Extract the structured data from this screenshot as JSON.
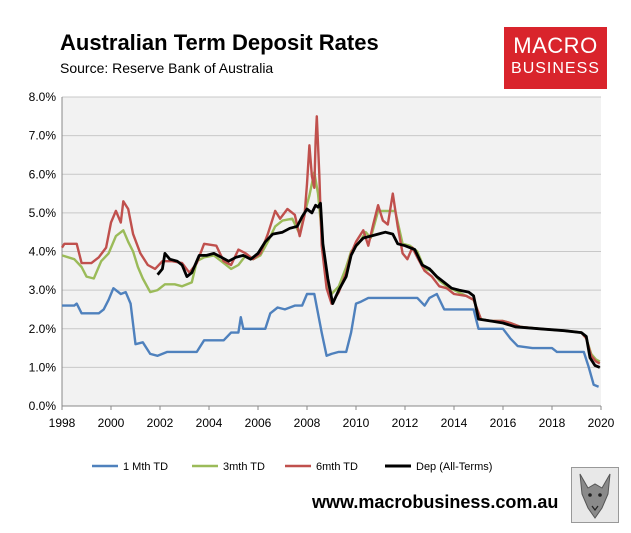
{
  "header": {
    "title": "Australian Term Deposit Rates",
    "subtitle": "Source: Reserve Bank of Australia"
  },
  "logo": {
    "line1": "MACRO",
    "line2": "BUSINESS",
    "color": "#d9242c"
  },
  "footer": {
    "url": "www.macrobusiness.com.au"
  },
  "chart_data": {
    "type": "line",
    "title": "Australian Term Deposit Rates",
    "xlim": [
      1998,
      2020
    ],
    "ylim": [
      0,
      0.08
    ],
    "x_ticks": [
      "1998",
      "2000",
      "2002",
      "2004",
      "2006",
      "2008",
      "2010",
      "2012",
      "2014",
      "2016",
      "2018",
      "2020"
    ],
    "y_ticks": [
      "0.0%",
      "1.0%",
      "2.0%",
      "3.0%",
      "4.0%",
      "5.0%",
      "6.0%",
      "7.0%",
      "8.0%"
    ],
    "plot_background": "#f2f2f2",
    "grid": true,
    "legend_position": "bottom",
    "series": [
      {
        "name": "1 Mth TD",
        "color": "#4f81bd",
        "points": [
          [
            1998.0,
            0.026
          ],
          [
            1998.5,
            0.026
          ],
          [
            1998.6,
            0.0265
          ],
          [
            1998.8,
            0.024
          ],
          [
            1999.5,
            0.024
          ],
          [
            1999.7,
            0.025
          ],
          [
            1999.9,
            0.0275
          ],
          [
            2000.1,
            0.0305
          ],
          [
            2000.4,
            0.029
          ],
          [
            2000.6,
            0.0295
          ],
          [
            2000.8,
            0.0265
          ],
          [
            2001.0,
            0.016
          ],
          [
            2001.3,
            0.0165
          ],
          [
            2001.6,
            0.0135
          ],
          [
            2001.9,
            0.013
          ],
          [
            2002.3,
            0.014
          ],
          [
            2003.5,
            0.014
          ],
          [
            2003.8,
            0.017
          ],
          [
            2004.6,
            0.017
          ],
          [
            2004.9,
            0.019
          ],
          [
            2005.2,
            0.019
          ],
          [
            2005.3,
            0.023
          ],
          [
            2005.4,
            0.02
          ],
          [
            2006.3,
            0.02
          ],
          [
            2006.5,
            0.024
          ],
          [
            2006.8,
            0.0255
          ],
          [
            2007.1,
            0.025
          ],
          [
            2007.5,
            0.026
          ],
          [
            2007.8,
            0.026
          ],
          [
            2008.0,
            0.029
          ],
          [
            2008.3,
            0.029
          ],
          [
            2008.6,
            0.019
          ],
          [
            2008.8,
            0.013
          ],
          [
            2009.0,
            0.0135
          ],
          [
            2009.3,
            0.014
          ],
          [
            2009.6,
            0.014
          ],
          [
            2009.8,
            0.019
          ],
          [
            2010.0,
            0.0265
          ],
          [
            2010.2,
            0.027
          ],
          [
            2010.5,
            0.028
          ],
          [
            2012.5,
            0.028
          ],
          [
            2012.8,
            0.026
          ],
          [
            2013.0,
            0.028
          ],
          [
            2013.3,
            0.029
          ],
          [
            2013.6,
            0.025
          ],
          [
            2014.8,
            0.025
          ],
          [
            2015.0,
            0.02
          ],
          [
            2016.0,
            0.02
          ],
          [
            2016.3,
            0.0175
          ],
          [
            2016.6,
            0.0155
          ],
          [
            2017.2,
            0.015
          ],
          [
            2018.0,
            0.015
          ],
          [
            2018.2,
            0.014
          ],
          [
            2019.3,
            0.014
          ],
          [
            2019.5,
            0.01
          ],
          [
            2019.7,
            0.0055
          ],
          [
            2019.9,
            0.005
          ]
        ]
      },
      {
        "name": "3mth TD",
        "color": "#9bbb59",
        "points": [
          [
            1998.0,
            0.039
          ],
          [
            1998.5,
            0.038
          ],
          [
            1998.8,
            0.036
          ],
          [
            1999.0,
            0.0335
          ],
          [
            1999.3,
            0.033
          ],
          [
            1999.6,
            0.0375
          ],
          [
            1999.9,
            0.0395
          ],
          [
            2000.2,
            0.044
          ],
          [
            2000.5,
            0.0455
          ],
          [
            2000.7,
            0.0425
          ],
          [
            2000.9,
            0.04
          ],
          [
            2001.1,
            0.036
          ],
          [
            2001.3,
            0.033
          ],
          [
            2001.6,
            0.0295
          ],
          [
            2001.9,
            0.03
          ],
          [
            2002.2,
            0.0315
          ],
          [
            2002.6,
            0.0315
          ],
          [
            2002.9,
            0.031
          ],
          [
            2003.3,
            0.032
          ],
          [
            2003.5,
            0.0375
          ],
          [
            2003.8,
            0.0385
          ],
          [
            2004.2,
            0.039
          ],
          [
            2004.6,
            0.037
          ],
          [
            2004.9,
            0.0355
          ],
          [
            2005.2,
            0.0365
          ],
          [
            2005.5,
            0.039
          ],
          [
            2005.8,
            0.038
          ],
          [
            2006.1,
            0.039
          ],
          [
            2006.4,
            0.0425
          ],
          [
            2006.7,
            0.0465
          ],
          [
            2007.0,
            0.048
          ],
          [
            2007.4,
            0.0485
          ],
          [
            2007.7,
            0.0445
          ],
          [
            2007.9,
            0.05
          ],
          [
            2008.1,
            0.0545
          ],
          [
            2008.3,
            0.0605
          ],
          [
            2008.45,
            0.055
          ],
          [
            2008.6,
            0.045
          ],
          [
            2008.8,
            0.032
          ],
          [
            2009.0,
            0.029
          ],
          [
            2009.3,
            0.031
          ],
          [
            2009.6,
            0.036
          ],
          [
            2009.8,
            0.04
          ],
          [
            2010.1,
            0.042
          ],
          [
            2010.4,
            0.045
          ],
          [
            2010.6,
            0.0435
          ],
          [
            2010.9,
            0.0505
          ],
          [
            2011.6,
            0.0505
          ],
          [
            2011.9,
            0.042
          ],
          [
            2012.2,
            0.0415
          ],
          [
            2012.5,
            0.04
          ],
          [
            2012.8,
            0.0355
          ],
          [
            2013.1,
            0.035
          ],
          [
            2013.4,
            0.0325
          ],
          [
            2013.7,
            0.031
          ],
          [
            2014.0,
            0.03
          ],
          [
            2014.5,
            0.0285
          ],
          [
            2014.8,
            0.0275
          ],
          [
            2015.1,
            0.0225
          ],
          [
            2015.5,
            0.022
          ],
          [
            2016.0,
            0.022
          ],
          [
            2016.3,
            0.0215
          ],
          [
            2016.7,
            0.0205
          ],
          [
            2017.5,
            0.02
          ],
          [
            2018.5,
            0.0195
          ],
          [
            2019.2,
            0.019
          ],
          [
            2019.4,
            0.0175
          ],
          [
            2019.6,
            0.0135
          ],
          [
            2019.8,
            0.012
          ],
          [
            2019.95,
            0.0115
          ]
        ]
      },
      {
        "name": "6mth TD",
        "color": "#c0504d",
        "points": [
          [
            1998.0,
            0.041
          ],
          [
            1998.1,
            0.042
          ],
          [
            1998.6,
            0.042
          ],
          [
            1998.8,
            0.037
          ],
          [
            1999.2,
            0.037
          ],
          [
            1999.5,
            0.0385
          ],
          [
            1999.8,
            0.041
          ],
          [
            2000.0,
            0.0475
          ],
          [
            2000.2,
            0.0505
          ],
          [
            2000.4,
            0.0475
          ],
          [
            2000.5,
            0.053
          ],
          [
            2000.7,
            0.051
          ],
          [
            2000.9,
            0.0445
          ],
          [
            2001.2,
            0.0395
          ],
          [
            2001.5,
            0.0365
          ],
          [
            2001.8,
            0.0355
          ],
          [
            2002.1,
            0.0375
          ],
          [
            2002.5,
            0.0375
          ],
          [
            2002.9,
            0.037
          ],
          [
            2003.2,
            0.0345
          ],
          [
            2003.5,
            0.037
          ],
          [
            2003.8,
            0.042
          ],
          [
            2004.3,
            0.0415
          ],
          [
            2004.6,
            0.0375
          ],
          [
            2004.9,
            0.0365
          ],
          [
            2005.2,
            0.0405
          ],
          [
            2005.5,
            0.0395
          ],
          [
            2005.8,
            0.038
          ],
          [
            2006.1,
            0.0395
          ],
          [
            2006.4,
            0.0445
          ],
          [
            2006.7,
            0.0505
          ],
          [
            2006.9,
            0.0485
          ],
          [
            2007.2,
            0.051
          ],
          [
            2007.5,
            0.0495
          ],
          [
            2007.7,
            0.044
          ],
          [
            2007.9,
            0.0495
          ],
          [
            2008.0,
            0.0575
          ],
          [
            2008.1,
            0.0675
          ],
          [
            2008.2,
            0.0595
          ],
          [
            2008.3,
            0.0565
          ],
          [
            2008.35,
            0.0685
          ],
          [
            2008.4,
            0.075
          ],
          [
            2008.5,
            0.06
          ],
          [
            2008.6,
            0.0415
          ],
          [
            2008.8,
            0.0305
          ],
          [
            2009.0,
            0.0265
          ],
          [
            2009.3,
            0.0295
          ],
          [
            2009.6,
            0.0345
          ],
          [
            2009.8,
            0.0395
          ],
          [
            2010.0,
            0.0425
          ],
          [
            2010.3,
            0.0455
          ],
          [
            2010.5,
            0.0415
          ],
          [
            2010.7,
            0.047
          ],
          [
            2010.9,
            0.052
          ],
          [
            2011.1,
            0.048
          ],
          [
            2011.3,
            0.047
          ],
          [
            2011.5,
            0.055
          ],
          [
            2011.7,
            0.0465
          ],
          [
            2011.9,
            0.0395
          ],
          [
            2012.1,
            0.038
          ],
          [
            2012.3,
            0.041
          ],
          [
            2012.5,
            0.0385
          ],
          [
            2012.8,
            0.035
          ],
          [
            2013.1,
            0.0335
          ],
          [
            2013.4,
            0.031
          ],
          [
            2013.7,
            0.0305
          ],
          [
            2014.0,
            0.029
          ],
          [
            2014.5,
            0.0285
          ],
          [
            2014.8,
            0.0275
          ],
          [
            2015.1,
            0.0225
          ],
          [
            2015.5,
            0.022
          ],
          [
            2016.0,
            0.022
          ],
          [
            2016.3,
            0.0215
          ],
          [
            2016.7,
            0.0205
          ],
          [
            2017.5,
            0.02
          ],
          [
            2018.5,
            0.0195
          ],
          [
            2019.2,
            0.019
          ],
          [
            2019.4,
            0.0175
          ],
          [
            2019.6,
            0.013
          ],
          [
            2019.8,
            0.0115
          ],
          [
            2019.95,
            0.011
          ]
        ]
      },
      {
        "name": "Dep (All-Terms)",
        "color": "#000000",
        "points": [
          [
            2001.9,
            0.034
          ],
          [
            2002.1,
            0.0355
          ],
          [
            2002.2,
            0.0395
          ],
          [
            2002.4,
            0.038
          ],
          [
            2002.7,
            0.0375
          ],
          [
            2002.9,
            0.0365
          ],
          [
            2003.1,
            0.0335
          ],
          [
            2003.3,
            0.0345
          ],
          [
            2003.6,
            0.039
          ],
          [
            2003.9,
            0.039
          ],
          [
            2004.2,
            0.0395
          ],
          [
            2004.5,
            0.0385
          ],
          [
            2004.8,
            0.0375
          ],
          [
            2005.1,
            0.0385
          ],
          [
            2005.4,
            0.039
          ],
          [
            2005.7,
            0.038
          ],
          [
            2006.0,
            0.0395
          ],
          [
            2006.3,
            0.0425
          ],
          [
            2006.6,
            0.0445
          ],
          [
            2007.0,
            0.045
          ],
          [
            2007.3,
            0.046
          ],
          [
            2007.6,
            0.0465
          ],
          [
            2007.8,
            0.049
          ],
          [
            2008.0,
            0.051
          ],
          [
            2008.2,
            0.05
          ],
          [
            2008.35,
            0.052
          ],
          [
            2008.45,
            0.0515
          ],
          [
            2008.55,
            0.0525
          ],
          [
            2008.65,
            0.042
          ],
          [
            2008.85,
            0.033
          ],
          [
            2009.05,
            0.0265
          ],
          [
            2009.3,
            0.03
          ],
          [
            2009.6,
            0.0335
          ],
          [
            2009.8,
            0.039
          ],
          [
            2010.0,
            0.0415
          ],
          [
            2010.3,
            0.0435
          ],
          [
            2010.6,
            0.044
          ],
          [
            2010.9,
            0.0445
          ],
          [
            2011.2,
            0.045
          ],
          [
            2011.5,
            0.0445
          ],
          [
            2011.7,
            0.042
          ],
          [
            2012.0,
            0.0415
          ],
          [
            2012.4,
            0.0405
          ],
          [
            2012.7,
            0.0365
          ],
          [
            2013.0,
            0.0355
          ],
          [
            2013.3,
            0.0335
          ],
          [
            2013.6,
            0.032
          ],
          [
            2013.9,
            0.0305
          ],
          [
            2014.2,
            0.03
          ],
          [
            2014.6,
            0.0295
          ],
          [
            2014.8,
            0.0285
          ],
          [
            2015.0,
            0.0225
          ],
          [
            2015.5,
            0.022
          ],
          [
            2016.0,
            0.0215
          ],
          [
            2016.5,
            0.0205
          ],
          [
            2017.5,
            0.02
          ],
          [
            2018.5,
            0.0195
          ],
          [
            2019.2,
            0.019
          ],
          [
            2019.4,
            0.018
          ],
          [
            2019.55,
            0.0125
          ],
          [
            2019.75,
            0.0105
          ],
          [
            2019.95,
            0.01
          ]
        ]
      }
    ]
  }
}
